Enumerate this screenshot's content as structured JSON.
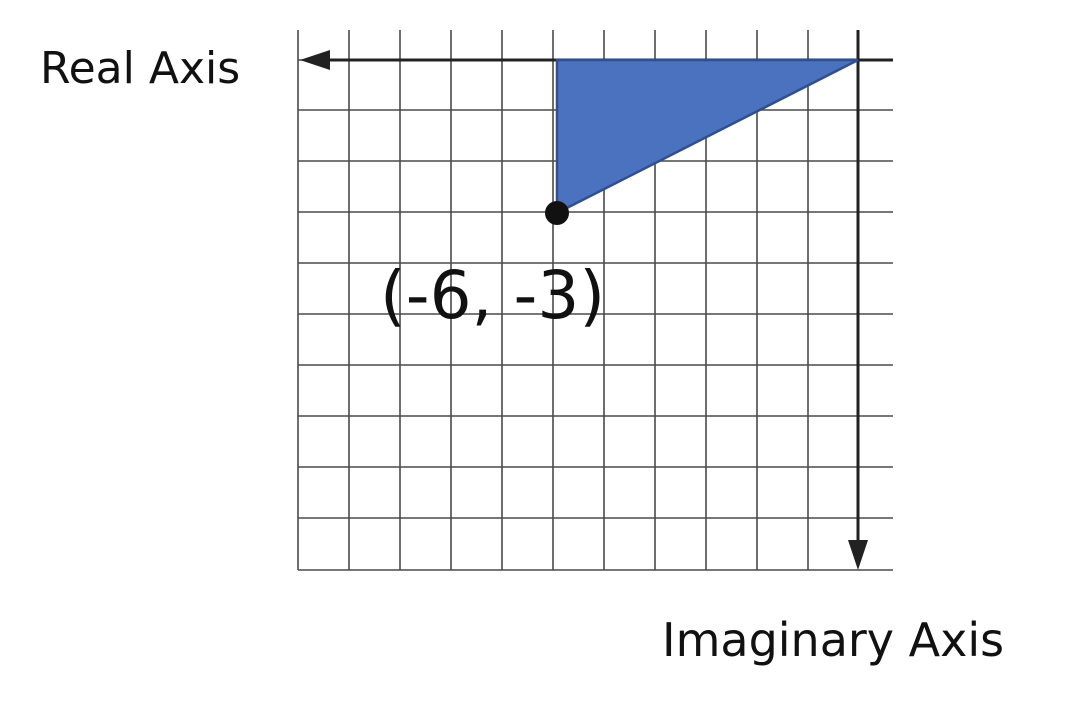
{
  "labels": {
    "real_axis": "Real Axis",
    "imaginary_axis": "Imaginary Axis",
    "point": "(-6, -3)"
  },
  "point": {
    "x": -6,
    "y": -3
  },
  "colors": {
    "triangle_fill": "#4a72bf",
    "triangle_stroke": "#2f4f8f",
    "grid": "#4a4a4a",
    "axis": "#222222",
    "text": "#111111"
  }
}
